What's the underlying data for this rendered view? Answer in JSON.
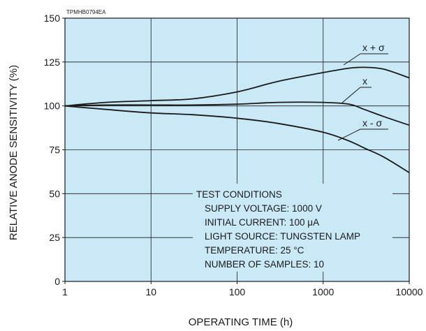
{
  "chart_data": {
    "type": "line",
    "figure_code": "TPMHB0794EA",
    "xlabel": "OPERATING TIME (h)",
    "ylabel": "RELATIVE ANODE SENSITIVITY (%)",
    "xscale": "log",
    "xlim": [
      1,
      10000
    ],
    "ylim": [
      0,
      150
    ],
    "x_ticks": [
      "1",
      "10",
      "100",
      "1000",
      "10000"
    ],
    "y_ticks": [
      "0",
      "25",
      "50",
      "75",
      "100",
      "125",
      "150"
    ],
    "grid": true,
    "colors": {
      "plot_background": "#c9e9f7",
      "line": "#1a1a1a"
    },
    "series": [
      {
        "name": "x + σ",
        "x": [
          1,
          3,
          10,
          30,
          100,
          300,
          1000,
          2000,
          3000,
          5000,
          10000
        ],
        "y": [
          100,
          102,
          103,
          104,
          108,
          114,
          119,
          121.5,
          122,
          121,
          116
        ]
      },
      {
        "name": "x",
        "x": [
          1,
          3,
          10,
          30,
          100,
          300,
          1000,
          2000,
          3000,
          5000,
          10000
        ],
        "y": [
          100,
          100.5,
          100.5,
          100.5,
          101,
          102,
          102,
          101,
          98,
          94,
          89
        ]
      },
      {
        "name": "x - σ",
        "x": [
          1,
          3,
          10,
          30,
          100,
          300,
          1000,
          2000,
          3000,
          5000,
          10000
        ],
        "y": [
          100,
          98,
          96,
          95,
          93,
          90,
          85,
          80,
          76,
          71,
          62
        ]
      }
    ],
    "annotation": {
      "lines": [
        "TEST CONDITIONS",
        "SUPPLY VOLTAGE: 1000 V",
        "INITIAL CURRENT: 100 μA",
        "LIGHT SOURCE: TUNGSTEN LAMP",
        "TEMPERATURE: 25 °C",
        "NUMBER OF SAMPLES: 10"
      ]
    }
  }
}
